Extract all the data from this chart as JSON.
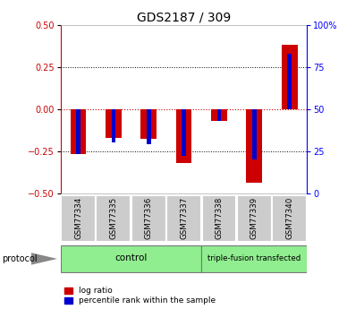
{
  "title": "GDS2187 / 309",
  "samples": [
    "GSM77334",
    "GSM77335",
    "GSM77336",
    "GSM77337",
    "GSM77338",
    "GSM77339",
    "GSM77340"
  ],
  "log_ratio": [
    -0.27,
    -0.17,
    -0.175,
    -0.32,
    -0.07,
    -0.44,
    0.38
  ],
  "percentile_rank": [
    23,
    30,
    29,
    22,
    43,
    20,
    83
  ],
  "ylim_left": [
    -0.5,
    0.5
  ],
  "ylim_right": [
    0,
    100
  ],
  "yticks_left": [
    -0.5,
    -0.25,
    0,
    0.25,
    0.5
  ],
  "yticks_right": [
    0,
    25,
    50,
    75,
    100
  ],
  "log_ratio_color": "#cc0000",
  "percentile_color": "#0000cc",
  "background_color": "#ffffff",
  "sample_box_color": "#cccccc",
  "legend_lr": "log ratio",
  "legend_pr": "percentile rank within the sample",
  "protocol_label": "protocol",
  "control_label": "control",
  "tfx_label": "triple-fusion transfected",
  "control_count": 4,
  "title_fontsize": 10,
  "tick_fontsize": 7,
  "bar_width": 0.45,
  "blue_bar_width": 0.12
}
